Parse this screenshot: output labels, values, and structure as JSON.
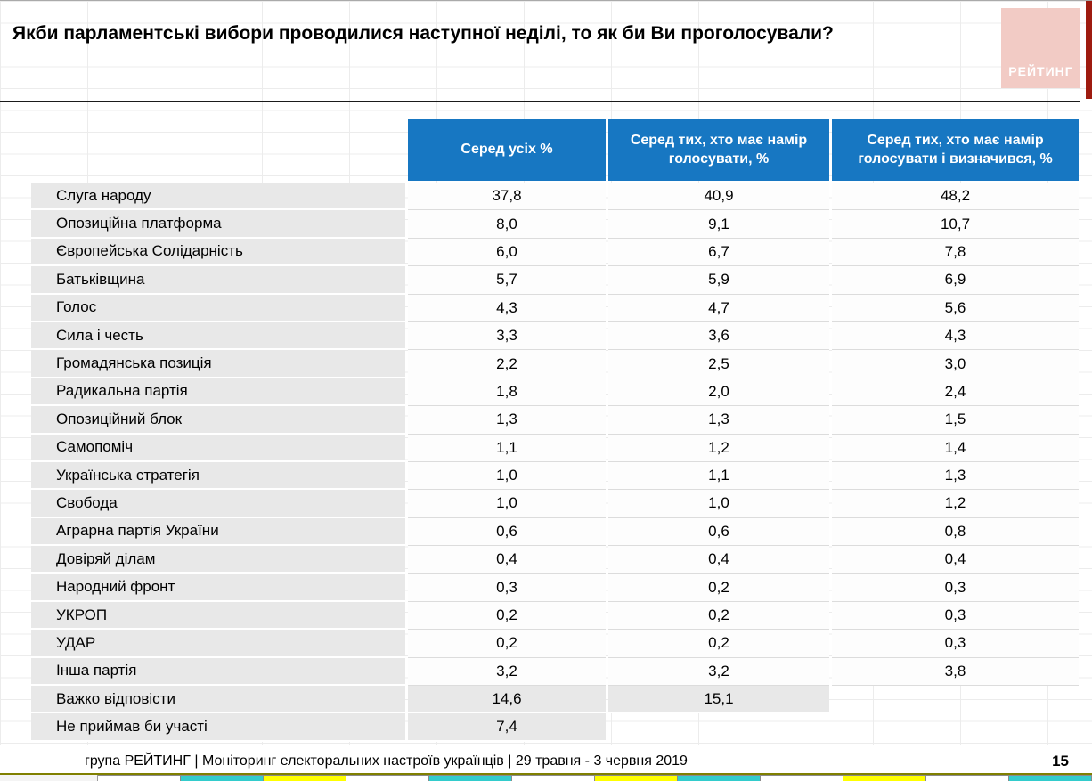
{
  "logo": {
    "text": "РЕЙТИНГ"
  },
  "colors": {
    "header_bg": "#1777c2",
    "row_shade": "#e8e8e8",
    "logo_bg": "#f2cbc5",
    "accent_red": "#9e1b10",
    "divider_black": "#1a1a1a",
    "footer_rule": "#808000"
  },
  "chart_data": {
    "type": "table",
    "title": "Якби парламентські вибори проводилися наступної неділі, то як би Ви проголосували?",
    "columns": [
      "Серед усіх %",
      "Серед тих, хто має намір голосувати, %",
      "Серед тих, хто має намір голосувати і визначився, %"
    ],
    "rows": [
      {
        "party": "Слуга народу",
        "values": [
          "37,8",
          "40,9",
          "48,2"
        ]
      },
      {
        "party": "Опозиційна платформа",
        "values": [
          "8,0",
          "9,1",
          "10,7"
        ]
      },
      {
        "party": "Європейська Солідарність",
        "values": [
          "6,0",
          "6,7",
          "7,8"
        ]
      },
      {
        "party": "Батьківщина",
        "values": [
          "5,7",
          "5,9",
          "6,9"
        ]
      },
      {
        "party": "Голос",
        "values": [
          "4,3",
          "4,7",
          "5,6"
        ]
      },
      {
        "party": "Сила і честь",
        "values": [
          "3,3",
          "3,6",
          "4,3"
        ]
      },
      {
        "party": "Громадянська позиція",
        "values": [
          "2,2",
          "2,5",
          "3,0"
        ]
      },
      {
        "party": "Радикальна партія",
        "values": [
          "1,8",
          "2,0",
          "2,4"
        ]
      },
      {
        "party": "Опозиційний блок",
        "values": [
          "1,3",
          "1,3",
          "1,5"
        ]
      },
      {
        "party": "Самопоміч",
        "values": [
          "1,1",
          "1,2",
          "1,4"
        ]
      },
      {
        "party": "Українська стратегія",
        "values": [
          "1,0",
          "1,1",
          "1,3"
        ]
      },
      {
        "party": "Свобода",
        "values": [
          "1,0",
          "1,0",
          "1,2"
        ]
      },
      {
        "party": "Аграрна партія України",
        "values": [
          "0,6",
          "0,6",
          "0,8"
        ]
      },
      {
        "party": "Довіряй ділам",
        "values": [
          "0,4",
          "0,4",
          "0,4"
        ]
      },
      {
        "party": "Народний фронт",
        "values": [
          "0,3",
          "0,2",
          "0,3"
        ]
      },
      {
        "party": "УКРОП",
        "values": [
          "0,2",
          "0,2",
          "0,3"
        ]
      },
      {
        "party": "УДАР",
        "values": [
          "0,2",
          "0,2",
          "0,3"
        ]
      },
      {
        "party": "Інша партія",
        "values": [
          "3,2",
          "3,2",
          "3,8"
        ]
      },
      {
        "party": "Важко відповісти",
        "values": [
          "14,6",
          "15,1",
          null
        ]
      },
      {
        "party": "Не приймав би участі",
        "values": [
          "7,4",
          null,
          null
        ]
      }
    ]
  },
  "footer": {
    "caption": "група РЕЙТИНГ | Моніторинг електоральних настроїв українців  | 29 травня - 3 червня 2019",
    "page": "15"
  },
  "sheet_tabs": [
    "#ffffff",
    "#33cccc",
    "#ffff00",
    "#ffffff",
    "#33cccc",
    "#ffffff",
    "#ffff00",
    "#33cccc",
    "#ffffff",
    "#ffff00",
    "#ffffff",
    "#33cccc"
  ]
}
